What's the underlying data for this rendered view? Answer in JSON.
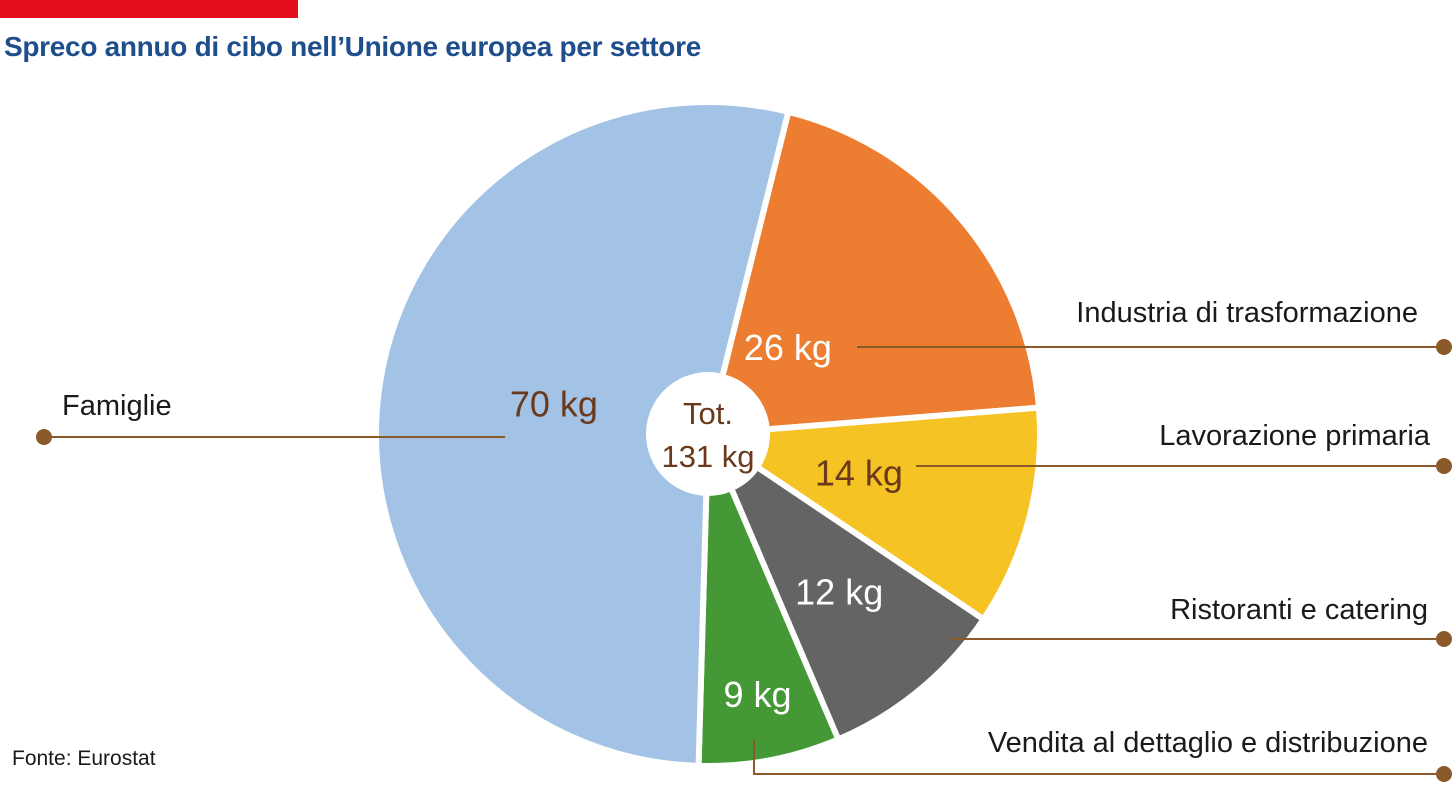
{
  "source": "Fonte: Eurostat",
  "colors": {
    "accent_bar": "#e3101b",
    "title": "#1f4e8c",
    "leader": "#8b5a2b",
    "dark_label": "#6b3a1c",
    "light_label": "#ffffff",
    "slice_border": "#ffffff"
  },
  "chart_data": {
    "type": "pie",
    "title": "Spreco annuo di cibo nell’Unione europea per settore",
    "unit": "kg",
    "total": 131,
    "total_label": [
      "Tot.",
      "131 kg"
    ],
    "slices": [
      {
        "name": "Industria di trasformazione",
        "value": 26,
        "label": "26 kg",
        "color": "#ed7d31"
      },
      {
        "name": "Lavorazione primaria",
        "value": 14,
        "label": "14 kg",
        "color": "#f5c324"
      },
      {
        "name": "Ristoranti e catering",
        "value": 12,
        "label": "12 kg",
        "color": "#646464"
      },
      {
        "name": "Vendita al dettaglio e distribuzione",
        "value": 9,
        "label": "9 kg",
        "color": "#449936"
      },
      {
        "name": "Famiglie",
        "value": 70,
        "label": "70 kg",
        "color": "#a2c2e6"
      }
    ],
    "legend": "callouts"
  }
}
